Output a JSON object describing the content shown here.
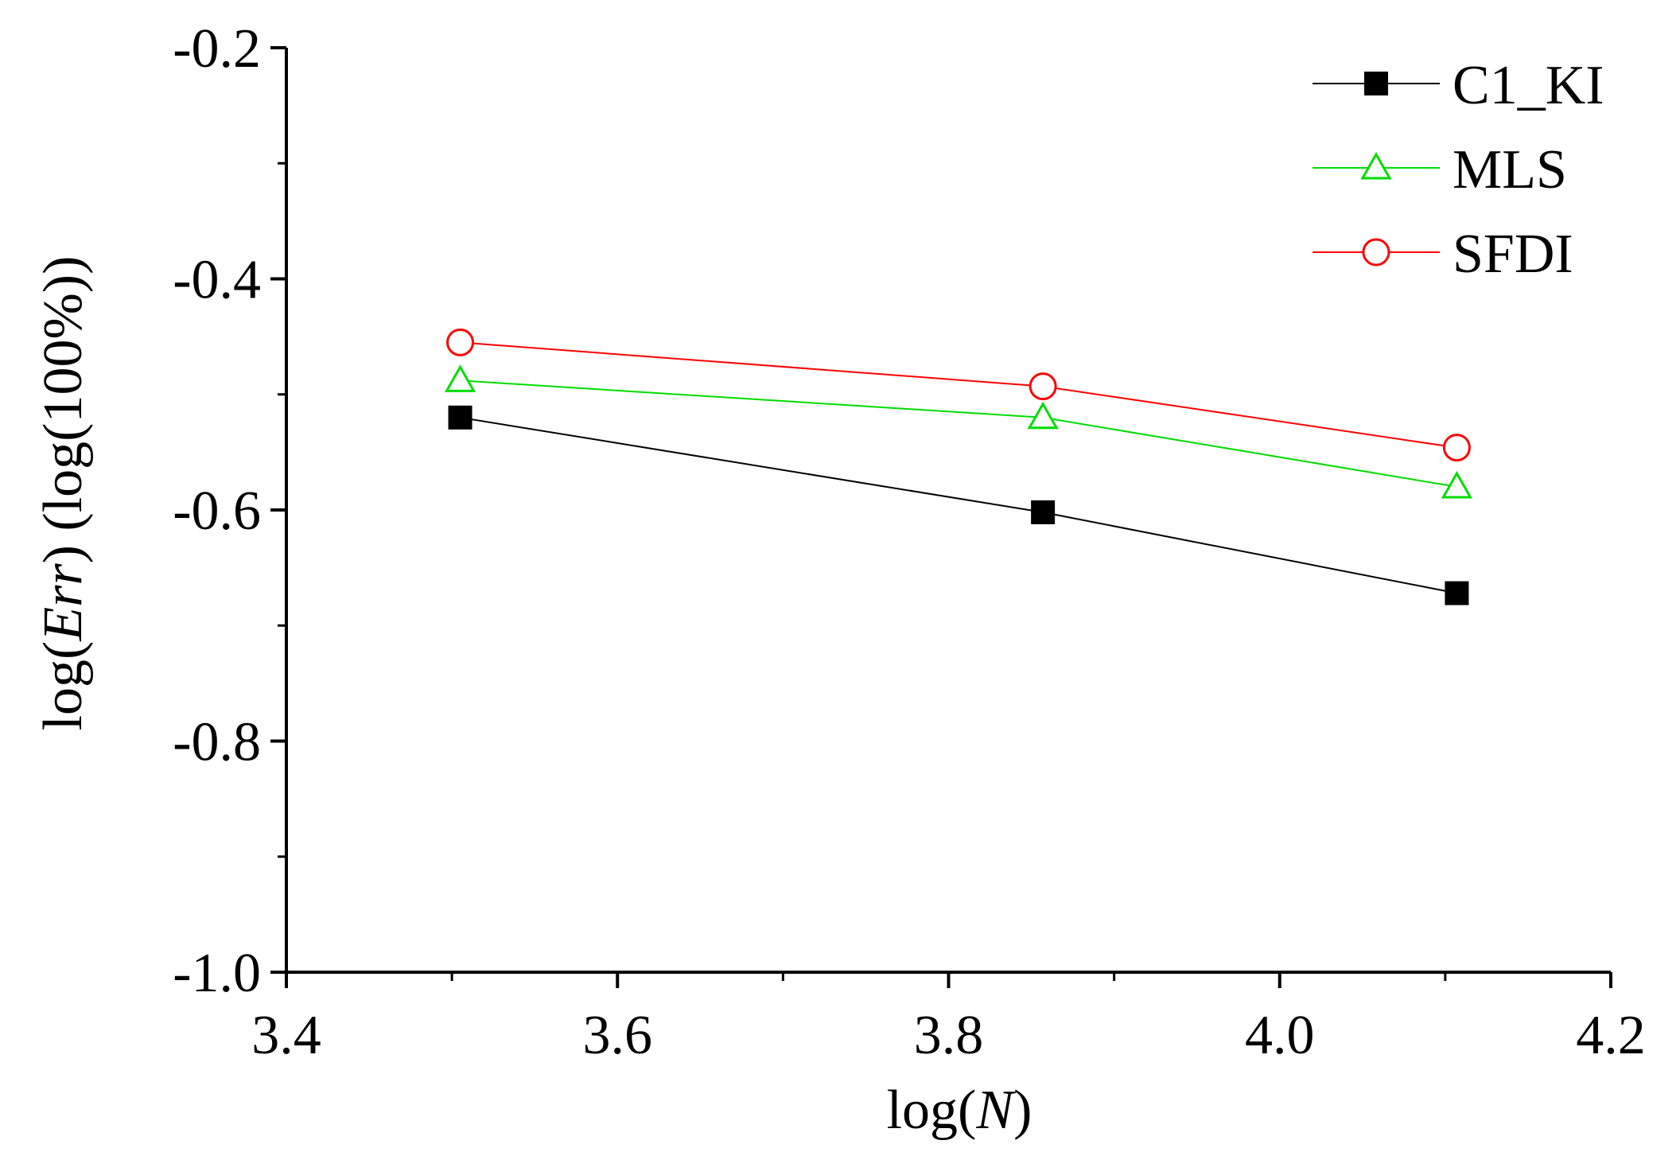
{
  "chart_data": {
    "type": "line",
    "title": "",
    "xlabel": {
      "prefix": "log(",
      "var": "N",
      "suffix": ")"
    },
    "ylabel": {
      "prefix": "log(",
      "var": "Err",
      "suffix": ") (log(100%))"
    },
    "xlim": [
      3.4,
      4.2
    ],
    "ylim": [
      -1.0,
      -0.2
    ],
    "xticks": [
      3.4,
      3.6,
      3.8,
      4.0,
      4.2
    ],
    "xtick_labels": [
      "3.4",
      "3.6",
      "3.8",
      "4.0",
      "4.2"
    ],
    "yticks": [
      -1.0,
      -0.8,
      -0.6,
      -0.4,
      -0.2
    ],
    "ytick_labels": [
      "-1.0",
      "-0.8",
      "-0.6",
      "-0.4",
      "-0.2"
    ],
    "grid": false,
    "legend_position": "top-right",
    "series": [
      {
        "name": "C1_KI",
        "color": "#000000",
        "marker": "filled-square",
        "x": [
          3.505,
          3.857,
          4.107
        ],
        "y": [
          -0.52,
          -0.602,
          -0.672
        ]
      },
      {
        "name": "MLS",
        "color": "#00dd00",
        "marker": "open-triangle",
        "x": [
          3.505,
          3.857,
          4.107
        ],
        "y": [
          -0.488,
          -0.52,
          -0.58
        ]
      },
      {
        "name": "SFDI",
        "color": "#ff0000",
        "marker": "open-circle",
        "x": [
          3.505,
          3.857,
          4.107
        ],
        "y": [
          -0.455,
          -0.493,
          -0.546
        ]
      }
    ]
  }
}
